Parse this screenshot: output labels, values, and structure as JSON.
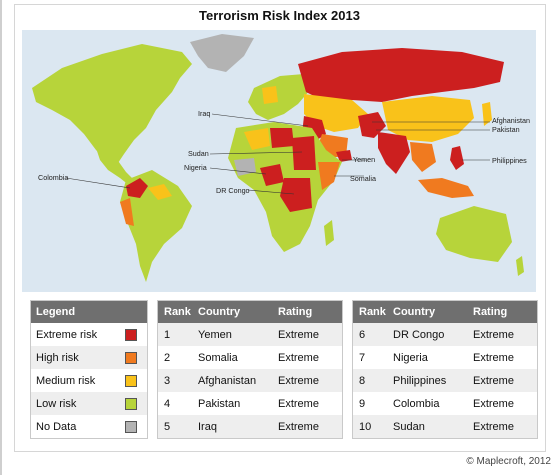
{
  "title": "Terrorism Risk Index 2013",
  "map": {
    "colors": {
      "extreme": "#cc1f1f",
      "high": "#f07a1f",
      "medium": "#f9c21a",
      "low": "#b7d43a",
      "nodata": "#b3b3b3",
      "water": "#dbe7f1"
    },
    "labels": {
      "iraq": "Iraq",
      "sudan": "Sudan",
      "nigeria": "Nigeria",
      "dr_congo": "DR Congo",
      "colombia": "Colombia",
      "yemen": "Yemen",
      "somalia": "Somalia",
      "afghanistan": "Afghanistan",
      "pakistan": "Pakistan",
      "philippines": "Philippines"
    }
  },
  "legend": {
    "title": "Legend",
    "items": [
      {
        "label": "Extreme risk",
        "color": "#cc1f1f"
      },
      {
        "label": "High risk",
        "color": "#f07a1f"
      },
      {
        "label": "Medium risk",
        "color": "#f9c21a"
      },
      {
        "label": "Low risk",
        "color": "#b7d43a"
      },
      {
        "label": "No Data",
        "color": "#b3b3b3"
      }
    ]
  },
  "table_headers": {
    "rank": "Rank",
    "country": "Country",
    "rating": "Rating"
  },
  "table1": [
    {
      "rank": "1",
      "country": "Yemen",
      "rating": "Extreme"
    },
    {
      "rank": "2",
      "country": "Somalia",
      "rating": "Extreme"
    },
    {
      "rank": "3",
      "country": "Afghanistan",
      "rating": "Extreme"
    },
    {
      "rank": "4",
      "country": "Pakistan",
      "rating": "Extreme"
    },
    {
      "rank": "5",
      "country": "Iraq",
      "rating": "Extreme"
    }
  ],
  "table2": [
    {
      "rank": "6",
      "country": "DR Congo",
      "rating": "Extreme"
    },
    {
      "rank": "7",
      "country": "Nigeria",
      "rating": "Extreme"
    },
    {
      "rank": "8",
      "country": "Philippines",
      "rating": "Extreme"
    },
    {
      "rank": "9",
      "country": "Colombia",
      "rating": "Extreme"
    },
    {
      "rank": "10",
      "country": "Sudan",
      "rating": "Extreme"
    }
  ],
  "credit": "© Maplecroft, 2012"
}
